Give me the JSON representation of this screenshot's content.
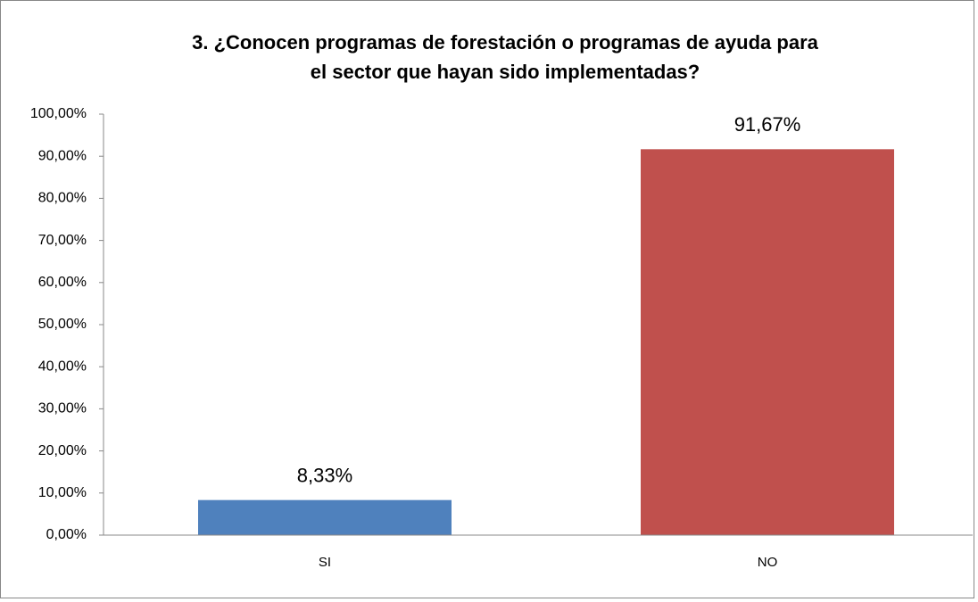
{
  "chart_data": {
    "type": "bar",
    "title": [
      "3. ¿Conocen programas de forestación o programas de ayuda para",
      "el sector que hayan sido implementadas?"
    ],
    "categories": [
      "SI",
      "NO"
    ],
    "values": [
      8.33,
      91.67
    ],
    "value_labels": [
      "8,33%",
      "91,67%"
    ],
    "colors": [
      "#4f81bd",
      "#c0504d"
    ],
    "ylim": [
      0,
      100
    ],
    "yticks": [
      {
        "value": 0,
        "label": "0,00%"
      },
      {
        "value": 10,
        "label": "10,00%"
      },
      {
        "value": 20,
        "label": "20,00%"
      },
      {
        "value": 30,
        "label": "30,00%"
      },
      {
        "value": 40,
        "label": "40,00%"
      },
      {
        "value": 50,
        "label": "50,00%"
      },
      {
        "value": 60,
        "label": "60,00%"
      },
      {
        "value": 70,
        "label": "70,00%"
      },
      {
        "value": 80,
        "label": "80,00%"
      },
      {
        "value": 90,
        "label": "90,00%"
      },
      {
        "value": 100,
        "label": "100,00%"
      }
    ],
    "grid": false
  }
}
